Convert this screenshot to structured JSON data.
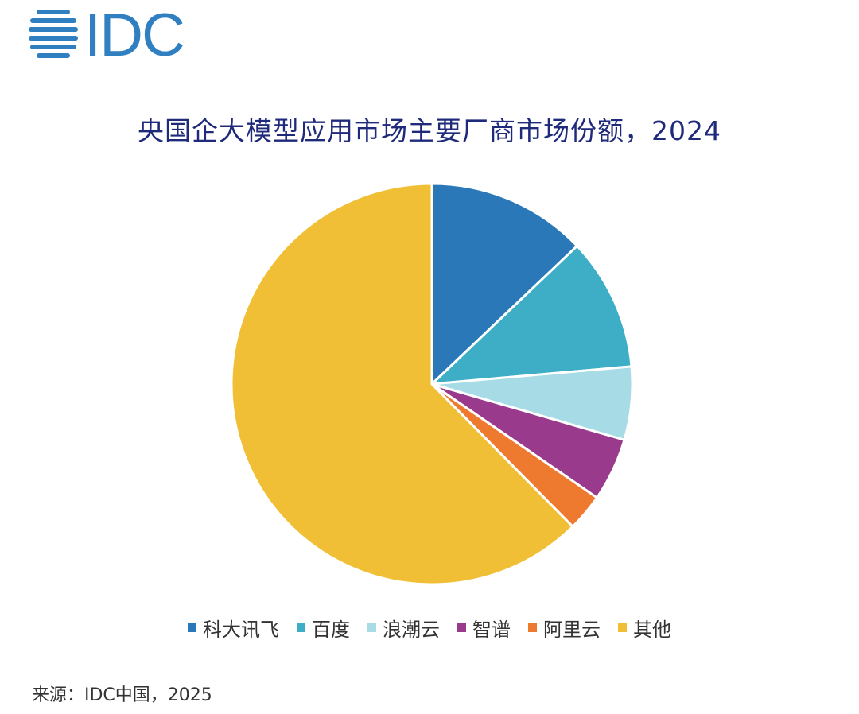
{
  "logo": {
    "text": "IDC",
    "color": "#2f7fc1"
  },
  "chart_data": {
    "type": "pie",
    "title": "央国企大模型应用市场主要厂商市场份额，2024",
    "categories": [
      "科大讯飞",
      "百度",
      "浪潮云",
      "智谱",
      "阿里云",
      "其他"
    ],
    "values": [
      12.9,
      10.7,
      5.9,
      5.1,
      3.0,
      62.4
    ],
    "colors": [
      "#2a78b8",
      "#3eaec6",
      "#a7dbe5",
      "#9a3a8c",
      "#ee7a30",
      "#f0bf35"
    ],
    "legend_position": "bottom"
  },
  "source": "来源：IDC中国，2025"
}
